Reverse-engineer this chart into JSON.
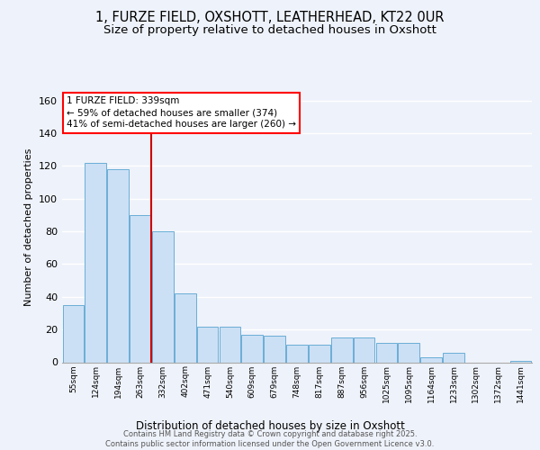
{
  "title_line1": "1, FURZE FIELD, OXSHOTT, LEATHERHEAD, KT22 0UR",
  "title_line2": "Size of property relative to detached houses in Oxshott",
  "xlabel": "Distribution of detached houses by size in Oxshott",
  "ylabel": "Number of detached properties",
  "categories": [
    "55sqm",
    "124sqm",
    "194sqm",
    "263sqm",
    "332sqm",
    "402sqm",
    "471sqm",
    "540sqm",
    "609sqm",
    "679sqm",
    "748sqm",
    "817sqm",
    "887sqm",
    "956sqm",
    "1025sqm",
    "1095sqm",
    "1164sqm",
    "1233sqm",
    "1302sqm",
    "1372sqm",
    "1441sqm"
  ],
  "values": [
    35,
    122,
    118,
    90,
    80,
    42,
    22,
    22,
    17,
    16,
    11,
    11,
    15,
    15,
    12,
    12,
    3,
    6,
    0,
    0,
    1
  ],
  "bar_color": "#cce0f5",
  "bar_edge_color": "#6aaed6",
  "vline_color": "#cc0000",
  "vline_x": 3.5,
  "annotation_text": "1 FURZE FIELD: 339sqm\n← 59% of detached houses are smaller (374)\n41% of semi-detached houses are larger (260) →",
  "ylim": [
    0,
    165
  ],
  "background_color": "#eef2fa",
  "grid_color": "#ffffff",
  "footer_text": "Contains HM Land Registry data © Crown copyright and database right 2025.\nContains public sector information licensed under the Open Government Licence v3.0.",
  "title_fontsize": 10.5,
  "subtitle_fontsize": 9.5,
  "yticks": [
    0,
    20,
    40,
    60,
    80,
    100,
    120,
    140,
    160
  ]
}
